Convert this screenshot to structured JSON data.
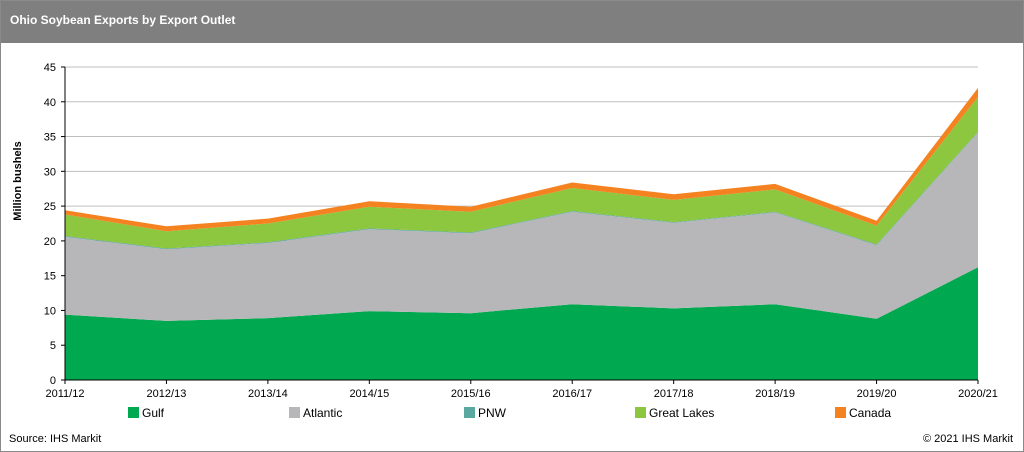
{
  "header": {
    "title": "Ohio Soybean Exports by Export Outlet"
  },
  "footer": {
    "source": "Source: IHS Markit",
    "copyright": "© 2021 IHS Markit"
  },
  "colors": {
    "header_bg": "#7f7f7f",
    "Gulf": "#00a94f",
    "Atlantic": "#b7b7b9",
    "PNW": "#5aa8a0",
    "Great Lakes": "#8dc63f",
    "Canada": "#f58220"
  },
  "chart_data": {
    "type": "area",
    "stacked": true,
    "title": "Ohio Soybean Exports by Export Outlet",
    "xlabel": "",
    "ylabel": "Million bushels",
    "ylim": [
      0,
      45
    ],
    "yticks": [
      "0",
      "5",
      "10",
      "15",
      "20",
      "25",
      "30",
      "35",
      "40",
      "45"
    ],
    "categories": [
      "2011/12",
      "2012/13",
      "2013/14",
      "2014/15",
      "2015/16",
      "2016/17",
      "2017/18",
      "2018/19",
      "2019/20",
      "2020/21"
    ],
    "series": [
      {
        "name": "Gulf",
        "values": [
          9.4,
          8.5,
          8.9,
          9.9,
          9.6,
          10.9,
          10.3,
          10.9,
          8.8,
          16.2
        ]
      },
      {
        "name": "Atlantic",
        "values": [
          11.2,
          10.3,
          10.8,
          11.8,
          11.5,
          13.3,
          12.3,
          13.2,
          10.6,
          19.4
        ]
      },
      {
        "name": "PNW",
        "values": [
          0.1,
          0.1,
          0.1,
          0.1,
          0.1,
          0.1,
          0.1,
          0.1,
          0.1,
          0.1
        ]
      },
      {
        "name": "Great Lakes",
        "values": [
          3.1,
          2.5,
          2.7,
          3.1,
          3.0,
          3.3,
          3.2,
          3.2,
          2.7,
          5.0
        ]
      },
      {
        "name": "Canada",
        "values": [
          0.6,
          0.7,
          0.7,
          0.8,
          0.7,
          0.8,
          0.8,
          0.8,
          0.7,
          1.3
        ]
      }
    ],
    "grid": true,
    "legend_position": "bottom"
  }
}
